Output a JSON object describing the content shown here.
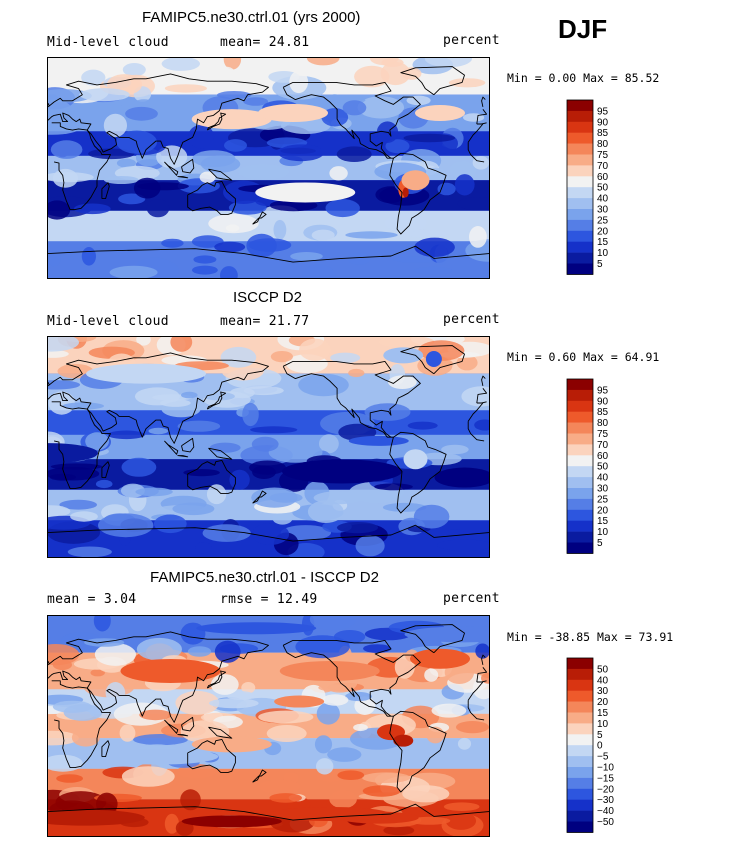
{
  "season": "DJF",
  "panels": [
    {
      "title": "FAMIPC5.ne30.ctrl.01 (yrs 2000)",
      "left_label": "Mid-level cloud",
      "stat_text": "mean=  24.81",
      "units": "percent",
      "minmax": "Min =    0.00 Max =  85.52",
      "colorbar_ticks": [
        "95",
        "90",
        "85",
        "80",
        "75",
        "70",
        "60",
        "50",
        "40",
        "30",
        "25",
        "20",
        "15",
        "10",
        "5"
      ],
      "colors": [
        "#8b0000",
        "#b81d06",
        "#d93512",
        "#ee5a2b",
        "#f4865a",
        "#f8ac87",
        "#fbd3bd",
        "#f2f2f2",
        "#c3d7f3",
        "#a0bff0",
        "#7aa3ec",
        "#557ee6",
        "#2d56df",
        "#1531c9",
        "#0a1ba0",
        "#000080"
      ],
      "bands": [
        {
          "lat": [
            60,
            90
          ],
          "range": "45-60"
        },
        {
          "lat": [
            30,
            60
          ],
          "range": "20-40"
        },
        {
          "lat": [
            5,
            30
          ],
          "range": "5-15"
        },
        {
          "lat": [
            -10,
            10
          ],
          "range": "25-45"
        },
        {
          "lat": [
            -35,
            -10
          ],
          "range": "5-15"
        },
        {
          "lat": [
            -60,
            -35
          ],
          "range": "40-55"
        },
        {
          "lat": [
            -90,
            -60
          ],
          "range": "20-35"
        }
      ]
    },
    {
      "title": "ISCCP D2",
      "left_label": "Mid-level cloud",
      "stat_text": "mean=  21.77",
      "units": "percent",
      "minmax": "Min =    0.60 Max =  64.91",
      "colorbar_ticks": [
        "95",
        "90",
        "85",
        "80",
        "75",
        "70",
        "60",
        "50",
        "40",
        "30",
        "25",
        "20",
        "15",
        "10",
        "5"
      ],
      "colors": [
        "#8b0000",
        "#b81d06",
        "#d93512",
        "#ee5a2b",
        "#f4865a",
        "#f8ac87",
        "#fbd3bd",
        "#f2f2f2",
        "#c3d7f3",
        "#a0bff0",
        "#7aa3ec",
        "#557ee6",
        "#2d56df",
        "#1531c9",
        "#0a1ba0",
        "#000080"
      ],
      "bands": [
        {
          "lat": [
            60,
            90
          ],
          "range": "45-60"
        },
        {
          "lat": [
            30,
            60
          ],
          "range": "30-45"
        },
        {
          "lat": [
            5,
            30
          ],
          "range": "10-20"
        },
        {
          "lat": [
            -10,
            10
          ],
          "range": "20-30"
        },
        {
          "lat": [
            -35,
            -10
          ],
          "range": "5-15"
        },
        {
          "lat": [
            -60,
            -35
          ],
          "range": "30-45"
        },
        {
          "lat": [
            -90,
            -60
          ],
          "range": "5-15"
        }
      ]
    },
    {
      "title": "FAMIPC5.ne30.ctrl.01 - ISCCP D2",
      "left_label": "mean =     3.04",
      "stat_text": "rmse =    12.49",
      "units": "percent",
      "minmax": "Min = -38.85 Max =  73.91",
      "colorbar_ticks": [
        "50",
        "40",
        "30",
        "20",
        "15",
        "10",
        "5",
        "0",
        "−5",
        "−10",
        "−15",
        "−20",
        "−30",
        "−40",
        "−50"
      ],
      "colors": [
        "#8b0000",
        "#b81d06",
        "#d93512",
        "#ee5a2b",
        "#f4865a",
        "#f8ac87",
        "#fbd3bd",
        "#f2f2f2",
        "#c3d7f3",
        "#a0bff0",
        "#7aa3ec",
        "#557ee6",
        "#2d56df",
        "#1531c9",
        "#0a1ba0",
        "#000080"
      ],
      "bands": [
        {
          "lat": [
            60,
            90
          ],
          "range": "-20-10"
        },
        {
          "lat": [
            30,
            60
          ],
          "range": "0-30"
        },
        {
          "lat": [
            5,
            30
          ],
          "range": "-10-10"
        },
        {
          "lat": [
            -10,
            10
          ],
          "range": "10-30"
        },
        {
          "lat": [
            -35,
            -10
          ],
          "range": "-5-5"
        },
        {
          "lat": [
            -60,
            -35
          ],
          "range": "5-20"
        },
        {
          "lat": [
            -90,
            -60
          ],
          "range": "20-50"
        }
      ]
    }
  ],
  "chart_data": {
    "type": "heatmap",
    "projection": "cylindrical equidistant, centered 180",
    "variable": "Mid-level cloud",
    "season": "DJF",
    "units": "percent",
    "panels": [
      {
        "title": "FAMIPC5.ne30.ctrl.01 (yrs 2000)",
        "mean": 24.81,
        "min": 0.0,
        "max": 85.52
      },
      {
        "title": "ISCCP D2",
        "mean": 21.77,
        "min": 0.6,
        "max": 64.91
      },
      {
        "title": "FAMIPC5.ne30.ctrl.01 - ISCCP D2",
        "mean": 3.04,
        "rmse": 12.49,
        "min": -38.85,
        "max": 73.91
      }
    ]
  }
}
